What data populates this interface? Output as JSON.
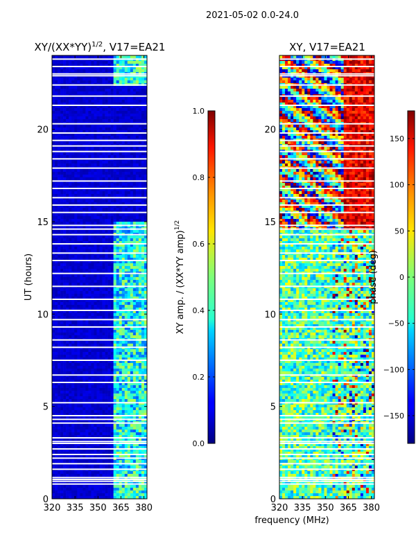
{
  "figure": {
    "suptitle": "2021-05-02 0.0-24.0",
    "shared_xlabel": "frequency (MHz)"
  },
  "chart_data": [
    {
      "type": "heatmap",
      "title_main": "XY/(XX*YY)",
      "title_sup": "1/2",
      "title_rest": ", V17=EA21",
      "ylabel": "UT (hours)",
      "xlim": [
        320,
        382
      ],
      "ylim": [
        0,
        24
      ],
      "xticks": [
        320,
        335,
        350,
        365,
        380
      ],
      "yticks": [
        0,
        5,
        10,
        15,
        20
      ],
      "colorbar": {
        "label_main": "XY amp. / (XX*YY amp)",
        "label_sup": "1/2",
        "range": [
          0.0,
          1.0
        ],
        "ticks": [
          0.0,
          0.2,
          0.4,
          0.6,
          0.8,
          1.0
        ],
        "tick_labels": [
          "0.0",
          "0.2",
          "0.4",
          "0.6",
          "0.8",
          "1.0"
        ],
        "colormap": "jet"
      },
      "description_bands": {
        "low_channel_value": 0.05,
        "rfi_band_mhz": [
          360,
          381
        ],
        "rfi_band_value": 0.35
      }
    },
    {
      "type": "heatmap",
      "title": "XY, V17=EA21",
      "ylabel": "",
      "xlim": [
        320,
        382
      ],
      "ylim": [
        0,
        24
      ],
      "xticks": [
        320,
        335,
        350,
        365,
        380
      ],
      "yticks": [
        0,
        5,
        10,
        15,
        20
      ],
      "colorbar": {
        "label": "phase (deg)",
        "range": [
          -180,
          180
        ],
        "ticks": [
          -150,
          -100,
          -50,
          0,
          50,
          100,
          150
        ],
        "tick_labels": [
          "−150",
          "−100",
          "−50",
          "0",
          "50",
          "100",
          "150"
        ],
        "colormap": "jet"
      }
    }
  ],
  "flagged_time_rows_hours": [
    0.8,
    0.95,
    1.05,
    1.15,
    1.6,
    1.9,
    2.2,
    2.4,
    2.7,
    3.0,
    3.1,
    3.3,
    4.1,
    4.3,
    4.5,
    5.2,
    6.3,
    6.7,
    7.5,
    8.2,
    8.6,
    9.3,
    9.7,
    10.2,
    10.8,
    11.5,
    12.2,
    12.9,
    13.3,
    13.8,
    14.3,
    14.6,
    14.8,
    15.5,
    15.9,
    16.3,
    16.8,
    17.2,
    17.9,
    18.4,
    18.8,
    19.1,
    19.4,
    19.8,
    20.3,
    21.3,
    21.8,
    22.4,
    22.9,
    23.0,
    23.4,
    23.8
  ]
}
